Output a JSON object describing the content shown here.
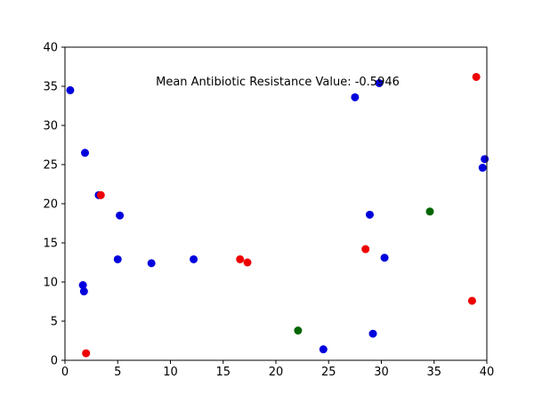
{
  "chart_data": {
    "type": "scatter",
    "title": "",
    "xlabel": "",
    "ylabel": "",
    "xlim": [
      0,
      40
    ],
    "ylim": [
      0,
      40
    ],
    "grid": false,
    "x_ticks": [
      0,
      5,
      10,
      15,
      20,
      25,
      30,
      35,
      40
    ],
    "y_ticks": [
      0,
      5,
      10,
      15,
      20,
      25,
      30,
      35,
      40
    ],
    "annotation": "Mean Antibiotic Resistance Value: -0.5946",
    "colors": {
      "blue": "#0000dd",
      "red": "#ee0000",
      "green": "#006600"
    },
    "points": [
      {
        "x": 0.5,
        "y": 34.5,
        "color": "blue"
      },
      {
        "x": 1.9,
        "y": 26.5,
        "color": "blue"
      },
      {
        "x": 3.2,
        "y": 21.1,
        "color": "blue"
      },
      {
        "x": 3.4,
        "y": 21.1,
        "color": "red"
      },
      {
        "x": 5.2,
        "y": 18.5,
        "color": "blue"
      },
      {
        "x": 5.0,
        "y": 12.9,
        "color": "blue"
      },
      {
        "x": 8.2,
        "y": 12.4,
        "color": "blue"
      },
      {
        "x": 12.2,
        "y": 12.9,
        "color": "blue"
      },
      {
        "x": 1.7,
        "y": 9.6,
        "color": "blue"
      },
      {
        "x": 1.8,
        "y": 8.8,
        "color": "blue"
      },
      {
        "x": 2.0,
        "y": 0.9,
        "color": "red"
      },
      {
        "x": 16.6,
        "y": 12.9,
        "color": "red"
      },
      {
        "x": 17.3,
        "y": 12.5,
        "color": "red"
      },
      {
        "x": 22.1,
        "y": 3.8,
        "color": "green"
      },
      {
        "x": 24.5,
        "y": 1.4,
        "color": "blue"
      },
      {
        "x": 27.5,
        "y": 33.6,
        "color": "blue"
      },
      {
        "x": 29.8,
        "y": 35.4,
        "color": "blue"
      },
      {
        "x": 28.9,
        "y": 18.6,
        "color": "blue"
      },
      {
        "x": 28.5,
        "y": 14.2,
        "color": "red"
      },
      {
        "x": 30.3,
        "y": 13.1,
        "color": "blue"
      },
      {
        "x": 29.2,
        "y": 3.4,
        "color": "blue"
      },
      {
        "x": 34.6,
        "y": 19.0,
        "color": "green"
      },
      {
        "x": 39.0,
        "y": 36.2,
        "color": "red"
      },
      {
        "x": 39.8,
        "y": 25.7,
        "color": "blue"
      },
      {
        "x": 39.6,
        "y": 24.6,
        "color": "blue"
      },
      {
        "x": 38.6,
        "y": 7.6,
        "color": "red"
      }
    ]
  }
}
